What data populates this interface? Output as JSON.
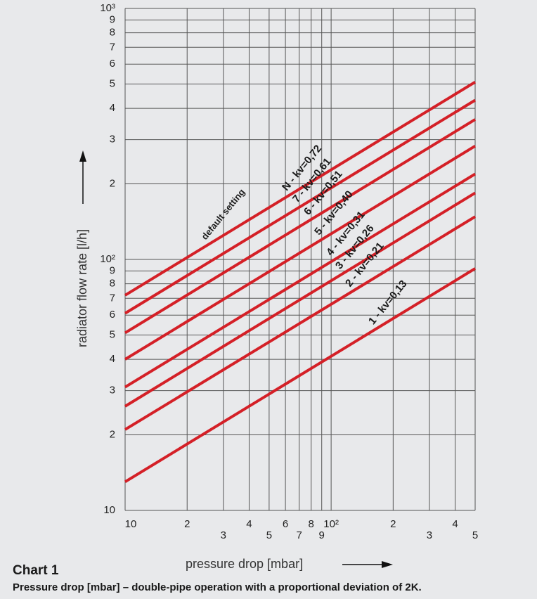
{
  "chart_data": {
    "type": "line",
    "title": "Chart 1",
    "subtitle": "Pressure drop [mbar] – double-pipe operation with a proportional deviation of 2K.",
    "xlabel": "pressure drop [mbar]",
    "ylabel": "radiator flow rate [l/h]",
    "annotation": "default setting",
    "log_x": true,
    "log_y": true,
    "grid": true,
    "x": [
      10,
      500
    ],
    "series": [
      {
        "name": "N - kv=0,72",
        "color": "#d42027",
        "values": [
          72,
          509
        ]
      },
      {
        "name": "7 - kv=0,61",
        "color": "#d42027",
        "values": [
          61,
          431
        ]
      },
      {
        "name": "6 - kv=0,51",
        "color": "#d42027",
        "values": [
          51,
          361
        ]
      },
      {
        "name": "5 - kv=0,40",
        "color": "#d42027",
        "values": [
          40,
          283
        ]
      },
      {
        "name": "4 - kv=0,31",
        "color": "#d42027",
        "values": [
          31,
          219
        ]
      },
      {
        "name": "3 - kv=0,26",
        "color": "#d42027",
        "values": [
          26,
          184
        ]
      },
      {
        "name": "2 - kv=0,21",
        "color": "#d42027",
        "values": [
          21,
          148
        ]
      },
      {
        "name": "1 - kv=0,13",
        "color": "#d42027",
        "values": [
          13,
          92
        ]
      }
    ],
    "xlim": [
      10,
      500
    ],
    "ylim": [
      10,
      1000
    ],
    "xticks": [
      10,
      {
        "value": 20,
        "label": "2"
      },
      {
        "value": 30,
        "label": "3"
      },
      {
        "value": 40,
        "label": "4"
      },
      {
        "value": 50,
        "label": "5"
      },
      {
        "value": 60,
        "label": "6"
      },
      {
        "value": 70,
        "label": "7"
      },
      {
        "value": 80,
        "label": "8"
      },
      {
        "value": 90,
        "label": "9"
      },
      {
        "value": 100,
        "label": "10²"
      },
      {
        "value": 200,
        "label": "2"
      },
      {
        "value": 300,
        "label": "3"
      },
      {
        "value": 400,
        "label": "4"
      },
      {
        "value": 500,
        "label": "5"
      }
    ],
    "yticks": [
      10,
      {
        "value": 20,
        "label": "2"
      },
      {
        "value": 30,
        "label": "3"
      },
      {
        "value": 40,
        "label": "4"
      },
      {
        "value": 50,
        "label": "5"
      },
      {
        "value": 60,
        "label": "6"
      },
      {
        "value": 70,
        "label": "7"
      },
      {
        "value": 80,
        "label": "8"
      },
      {
        "value": 90,
        "label": "9"
      },
      {
        "value": 100,
        "label": "10²"
      },
      {
        "value": 200,
        "label": "2"
      },
      {
        "value": 300,
        "label": "3"
      },
      {
        "value": 400,
        "label": "4"
      },
      {
        "value": 500,
        "label": "5"
      },
      {
        "value": 600,
        "label": "6"
      },
      {
        "value": 700,
        "label": "7"
      },
      {
        "value": 800,
        "label": "8"
      },
      {
        "value": 900,
        "label": "9"
      },
      {
        "value": 1000,
        "label": "10³"
      }
    ]
  }
}
